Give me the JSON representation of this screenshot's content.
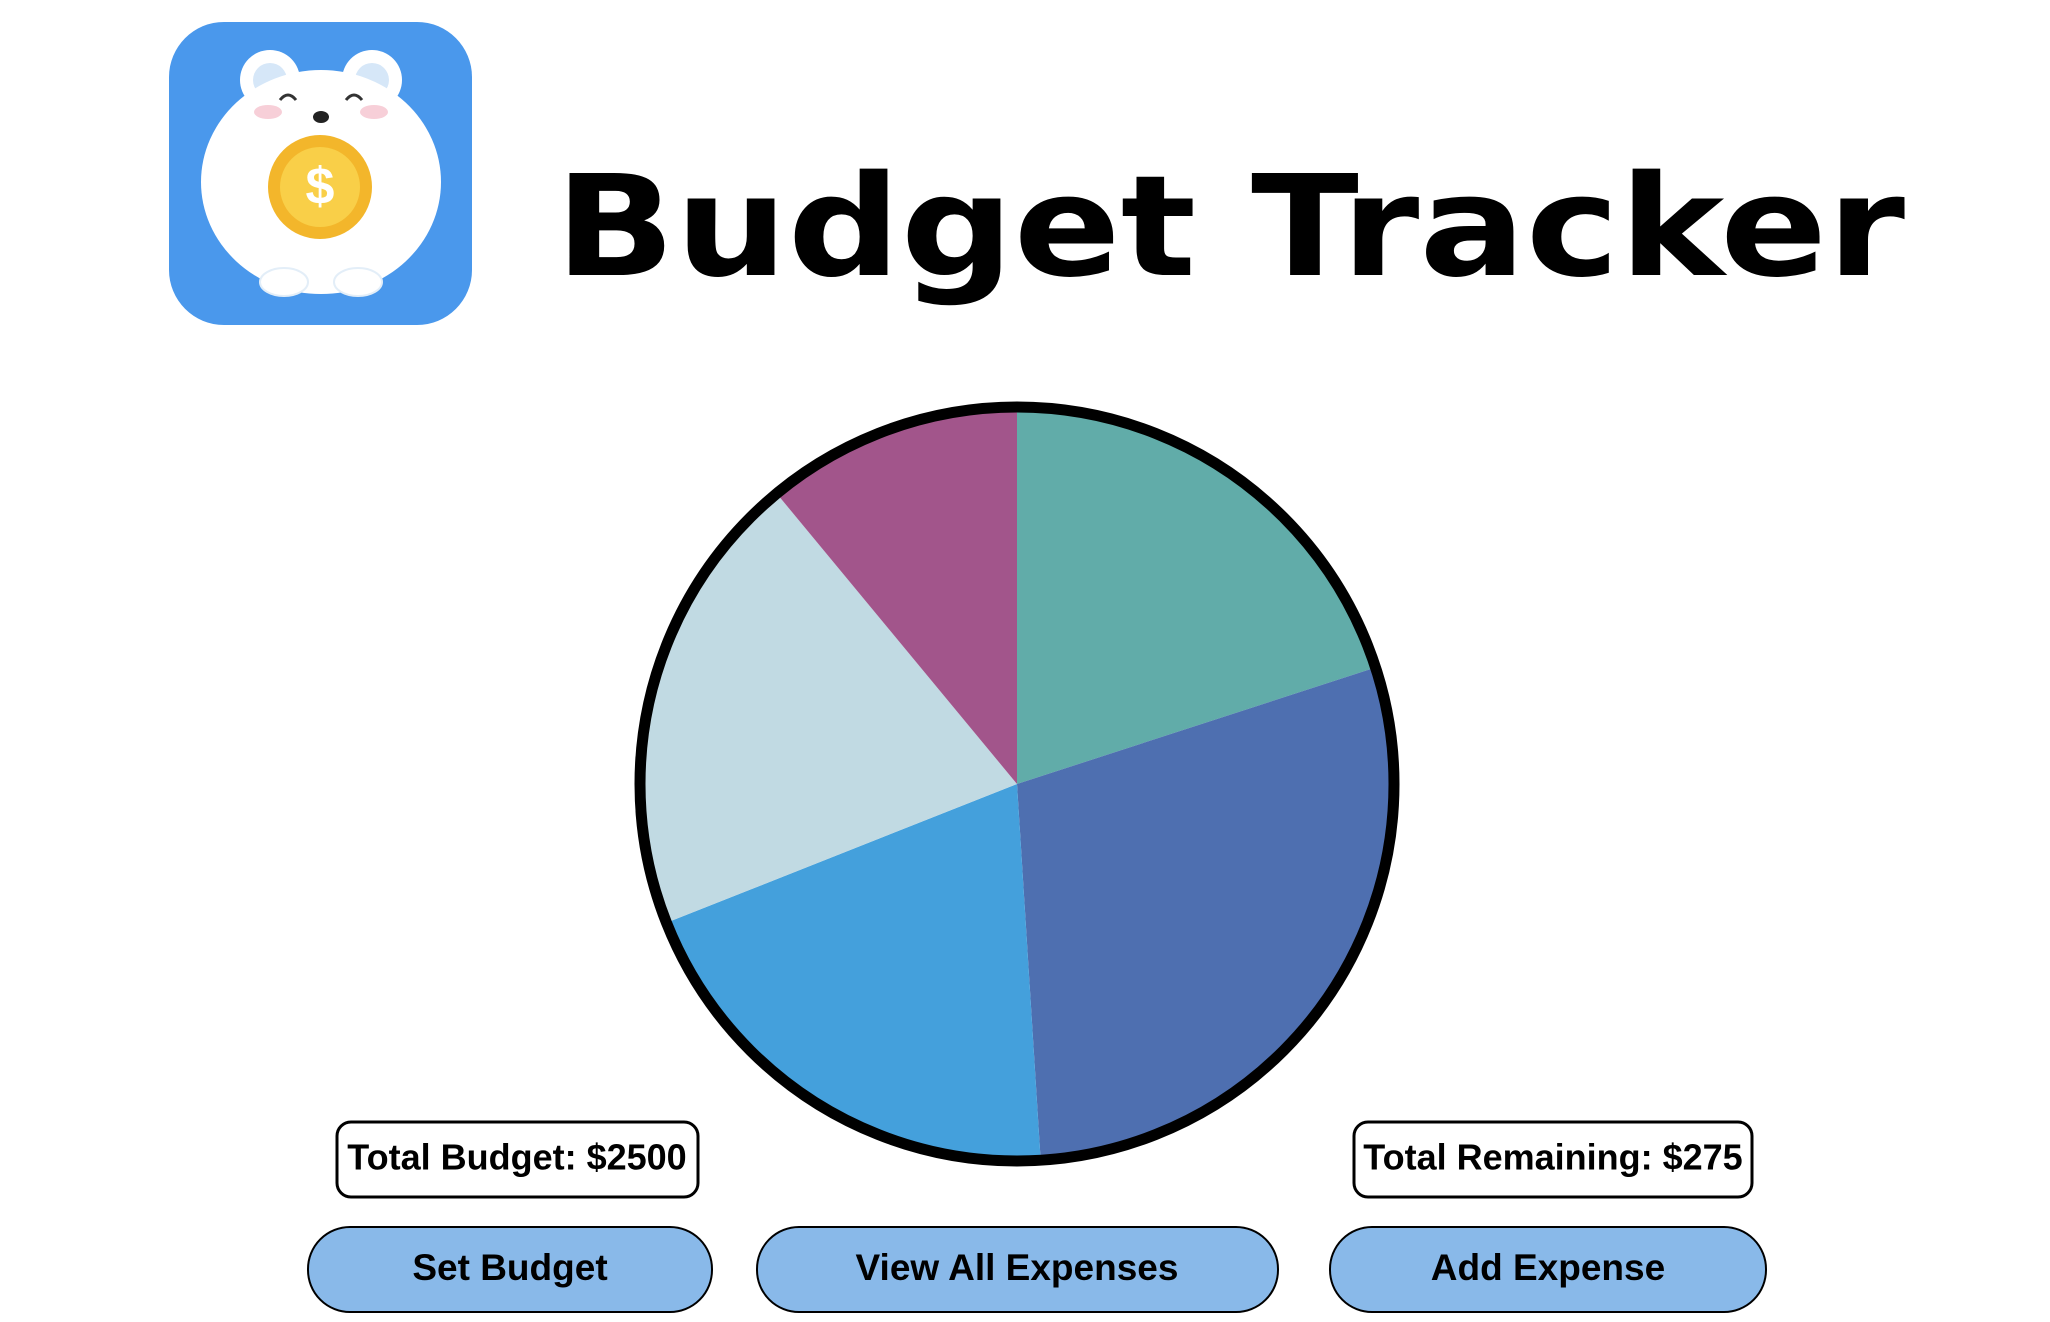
{
  "header": {
    "title": "Budget Tracker"
  },
  "chart_data": {
    "type": "pie",
    "values": [
      20,
      29,
      20,
      20,
      11
    ],
    "colors": [
      "#61aca9",
      "#4e6fb0",
      "#44a0dc",
      "#c1dae3",
      "#a2558b"
    ]
  },
  "summary": {
    "total_budget": "Total Budget: $2500",
    "total_remaining": "Total Remaining: $275"
  },
  "buttons": [
    "Set Budget",
    "View All Expenses",
    "Add Expense"
  ]
}
